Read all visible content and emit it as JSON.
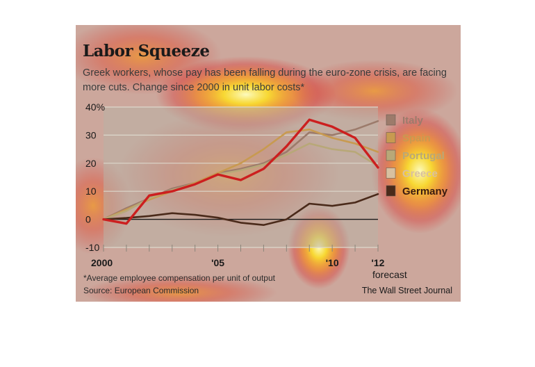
{
  "chart_data": {
    "type": "line",
    "title": "Labor Squeeze",
    "subtitle": "Greek workers, whose pay has been falling during the euro-zone crisis, are facing more cuts. Change since 2000 in unit labor costs*",
    "x": [
      2000,
      2001,
      2002,
      2003,
      2004,
      2005,
      2006,
      2007,
      2008,
      2009,
      2010,
      2011,
      2012
    ],
    "x_tick_labels": [
      {
        "x": 2000,
        "label": "2000"
      },
      {
        "x": 2005,
        "label": "'05"
      },
      {
        "x": 2010,
        "label": "'10"
      },
      {
        "x": 2012,
        "label": "'12"
      }
    ],
    "x_annotation": {
      "x": 2012,
      "label": "forecast"
    },
    "y_ticks": [
      {
        "value": 40,
        "label": "40%"
      },
      {
        "value": 30,
        "label": "30"
      },
      {
        "value": 20,
        "label": "20"
      },
      {
        "value": 10,
        "label": "10"
      },
      {
        "value": 0,
        "label": "0"
      },
      {
        "value": -10,
        "label": "-10"
      }
    ],
    "ylim": [
      -10,
      40
    ],
    "xlim": [
      2000,
      2012
    ],
    "grid": true,
    "legend_placement": "right",
    "series": [
      {
        "name": "Italy",
        "color": "#9c7b6b",
        "values": [
          0,
          4,
          7.5,
          11,
          13,
          16.5,
          18,
          20,
          24,
          31,
          30,
          32,
          35
        ]
      },
      {
        "name": "Spain",
        "color": "#c89a50",
        "values": [
          0,
          3.5,
          7,
          10,
          13,
          16.5,
          20,
          25,
          31,
          32,
          29,
          27,
          24
        ]
      },
      {
        "name": "Portugal",
        "color": "#b8a878",
        "values": [
          0,
          3,
          7.5,
          10.5,
          12.5,
          16,
          17.5,
          19.5,
          23,
          27,
          25,
          24,
          19
        ]
      },
      {
        "name": "Greece",
        "color": "#d8c0a0",
        "values": [
          0,
          -1.5,
          8.5,
          10,
          12.5,
          16,
          14,
          18,
          26,
          35.5,
          33,
          29,
          18.5
        ]
      },
      {
        "name": "Germany",
        "color": "#4a2a1a",
        "values": [
          0,
          0.5,
          1.2,
          2.2,
          1.6,
          0.6,
          -1.2,
          -2,
          0,
          5.6,
          4.8,
          6,
          9
        ]
      }
    ],
    "highlight_series": "Greece",
    "highlight_color": "#cc1f1f"
  },
  "footnote": "*Average employee compensation per unit of output",
  "source": "Source: European Commission",
  "credit": "The Wall Street Journal",
  "colors": {
    "background": "#c9c3b5",
    "plot_background": "#b9b3a6",
    "grid": "#ddd8cc",
    "zero_line": "#1a1a1a"
  }
}
